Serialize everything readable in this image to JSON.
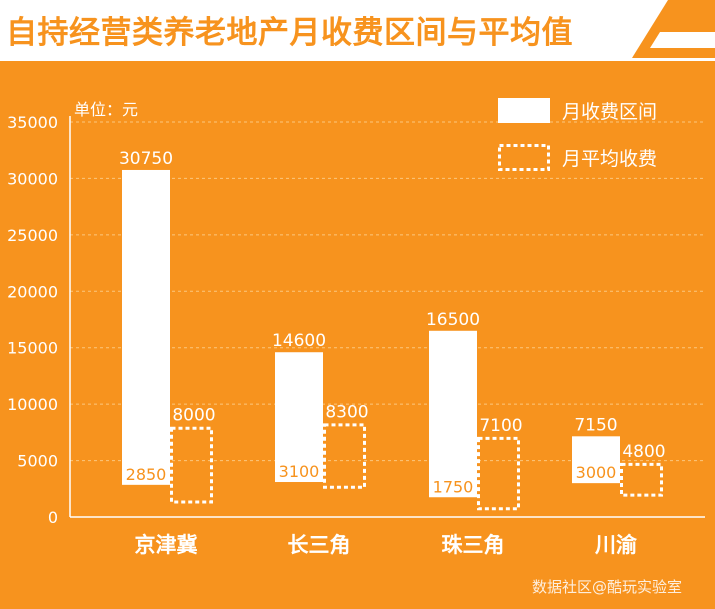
{
  "title": "自持经营类养老地产月收费区间与平均值",
  "watermark": "数据社区@酷玩实验室",
  "colors": {
    "background": "#f7931e",
    "bar": "#ffffff",
    "grid": "#fbc77e"
  },
  "chart_data": {
    "type": "bar",
    "unit_label": "单位：元",
    "categories": [
      "京津冀",
      "长三角",
      "珠三角",
      "川渝"
    ],
    "ylim": [
      0,
      35000
    ],
    "yticks": [
      0,
      5000,
      10000,
      15000,
      20000,
      25000,
      30000,
      35000
    ],
    "grid": true,
    "legend_position": "top-right",
    "series": [
      {
        "name": "月收费区间",
        "style": "solid",
        "low": [
          2850,
          3100,
          1750,
          3000
        ],
        "high": [
          30750,
          14600,
          16500,
          7150
        ]
      },
      {
        "name": "月平均收费",
        "style": "dashed",
        "low": [
          1200,
          2500,
          600,
          1800
        ],
        "high": [
          8000,
          8300,
          7100,
          4800
        ]
      }
    ]
  }
}
